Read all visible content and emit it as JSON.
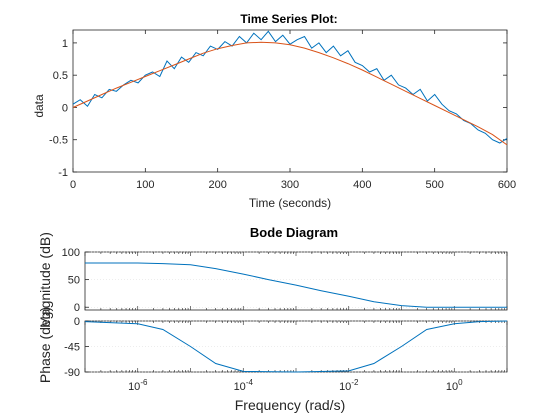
{
  "chart_data": [
    {
      "type": "line",
      "title": "Time Series Plot:",
      "xlabel": "Time (seconds)",
      "ylabel": "data",
      "xlim": [
        0,
        600
      ],
      "ylim": [
        -1,
        1.2
      ],
      "xticks": [
        0,
        100,
        200,
        300,
        400,
        500,
        600
      ],
      "yticks": [
        -1,
        -0.5,
        0,
        0.5,
        1
      ],
      "xtick_labels": [
        "0",
        "100",
        "200",
        "300",
        "400",
        "500",
        "600"
      ],
      "ytick_labels": [
        "-1",
        "-0.5",
        "0",
        "0.5",
        "1"
      ],
      "grid": false,
      "series": [
        {
          "color": "#0072BD",
          "x": [
            0,
            10,
            20,
            30,
            40,
            50,
            60,
            70,
            80,
            90,
            100,
            110,
            120,
            130,
            140,
            150,
            160,
            170,
            180,
            190,
            200,
            210,
            220,
            230,
            240,
            250,
            260,
            270,
            280,
            290,
            300,
            310,
            320,
            330,
            340,
            350,
            360,
            370,
            380,
            390,
            400,
            410,
            420,
            430,
            440,
            450,
            460,
            470,
            480,
            490,
            500,
            510,
            520,
            530,
            540,
            550,
            560,
            570,
            580,
            590,
            600
          ],
          "y": [
            0.05,
            0.12,
            0.02,
            0.2,
            0.15,
            0.28,
            0.25,
            0.35,
            0.42,
            0.38,
            0.5,
            0.55,
            0.48,
            0.72,
            0.6,
            0.78,
            0.7,
            0.85,
            0.8,
            0.95,
            0.9,
            1.02,
            0.95,
            1.1,
            1.0,
            1.15,
            1.05,
            1.18,
            1.02,
            1.12,
            0.98,
            1.05,
            1.1,
            0.92,
            1.0,
            0.85,
            0.95,
            0.8,
            0.88,
            0.7,
            0.65,
            0.55,
            0.6,
            0.42,
            0.5,
            0.35,
            0.3,
            0.2,
            0.28,
            0.1,
            0.2,
            0.05,
            -0.05,
            -0.1,
            -0.2,
            -0.25,
            -0.35,
            -0.4,
            -0.5,
            -0.55,
            -0.48
          ]
        },
        {
          "color": "#D95319",
          "x": [
            0,
            20,
            40,
            60,
            80,
            100,
            120,
            140,
            160,
            180,
            200,
            220,
            240,
            260,
            280,
            300,
            320,
            340,
            360,
            380,
            400,
            420,
            440,
            460,
            480,
            500,
            520,
            540,
            560,
            580,
            600
          ],
          "y": [
            0.0,
            0.1,
            0.2,
            0.3,
            0.39,
            0.48,
            0.57,
            0.66,
            0.75,
            0.84,
            0.91,
            0.96,
            1.0,
            1.01,
            1.0,
            0.97,
            0.92,
            0.85,
            0.77,
            0.68,
            0.58,
            0.47,
            0.36,
            0.25,
            0.14,
            0.03,
            -0.08,
            -0.19,
            -0.3,
            -0.42,
            -0.58
          ]
        }
      ]
    },
    {
      "type": "line",
      "title": "Bode Diagram",
      "xlabel": "Frequency  (rad/s)",
      "xscale": "log",
      "xlim": [
        1e-07,
        10
      ],
      "xticks": [
        1e-06,
        0.0001,
        0.01,
        1
      ],
      "xtick_labels": [
        "10^-6",
        "10^-4",
        "10^-2",
        "10^0"
      ],
      "panels": [
        {
          "ylabel": "Magnitude (dB)",
          "ylim": [
            -5,
            100
          ],
          "yticks": [
            0,
            50,
            100
          ],
          "ytick_labels": [
            "0",
            "50",
            "100"
          ],
          "series": [
            {
              "color": "#0072BD",
              "x": [
                1e-07,
                1e-06,
                3e-06,
                1e-05,
                3e-05,
                0.0001,
                0.0003,
                0.001,
                0.003,
                0.01,
                0.03,
                0.1,
                0.3,
                1,
                3,
                10
              ],
              "y": [
                80,
                80,
                79,
                77,
                70,
                60,
                50,
                40,
                30,
                20,
                10,
                3,
                0,
                0,
                0,
                0
              ]
            }
          ]
        },
        {
          "ylabel": "Phase (deg)",
          "ylim": [
            -90,
            0
          ],
          "yticks": [
            -90,
            -45,
            0
          ],
          "ytick_labels": [
            "-90",
            "-45",
            "0"
          ],
          "series": [
            {
              "color": "#0072BD",
              "x": [
                1e-07,
                1e-06,
                3e-06,
                1e-05,
                3e-05,
                0.0001,
                0.001,
                0.01,
                0.03,
                0.1,
                0.3,
                1,
                3,
                10
              ],
              "y": [
                -1,
                -5,
                -15,
                -45,
                -75,
                -89,
                -90,
                -88,
                -75,
                -45,
                -15,
                -5,
                -1,
                0
              ]
            }
          ]
        }
      ]
    }
  ]
}
